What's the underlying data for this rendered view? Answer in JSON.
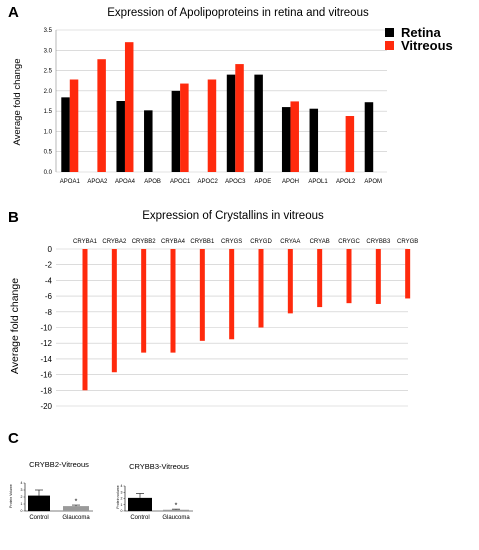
{
  "panels": {
    "a": "A",
    "b": "B",
    "c": "C"
  },
  "colors": {
    "retina": "#000000",
    "vitreous": "#ff2a0d",
    "control": "#000000",
    "glaucoma": "#9a9a9a",
    "grid": "#c8c8c8"
  },
  "chart_data": [
    {
      "type": "bar",
      "title": "Expression of Apolipoproteins in retina and vitreous",
      "xlabel": "",
      "ylabel": "Average fold change",
      "ylim": [
        0,
        3.5
      ],
      "yticks": [
        "0.0",
        "0.5",
        "1.0",
        "1.5",
        "2.0",
        "2.5",
        "3.0",
        "3.5"
      ],
      "grid": true,
      "legend_position": "right",
      "categories": [
        "APOA1",
        "APOA2",
        "APOA4",
        "APOB",
        "APOC1",
        "APOC2",
        "APOC3",
        "APOE",
        "APOH",
        "APOL1",
        "APOL2",
        "APOM"
      ],
      "series": [
        {
          "name": "Retina",
          "values": [
            1.84,
            null,
            1.75,
            1.52,
            2.0,
            null,
            2.4,
            2.4,
            1.6,
            1.56,
            null,
            1.72
          ]
        },
        {
          "name": "Vitreous",
          "values": [
            2.28,
            2.78,
            3.2,
            null,
            2.18,
            2.28,
            2.66,
            null,
            1.74,
            null,
            1.38,
            null
          ]
        }
      ]
    },
    {
      "type": "bar",
      "title": "Expression of Crystallins in vitreous",
      "xlabel": "",
      "ylabel": "Average fold change",
      "ylim": [
        -20,
        0
      ],
      "yticks": [
        "0",
        "-2",
        "-4",
        "-6",
        "-8",
        "-10",
        "-12",
        "-14",
        "-16",
        "-18",
        "-20"
      ],
      "grid": true,
      "categories": [
        "CRYBA1",
        "CRYBA2",
        "CRYBB2",
        "CRYBA4",
        "CRYBB1",
        "CRYGS",
        "CRYGD",
        "CRYAA",
        "CRYAB",
        "CRYGC",
        "CRYBB3",
        "CRYGB"
      ],
      "values": [
        -18.0,
        -15.7,
        -13.2,
        -13.2,
        -11.7,
        -11.5,
        -10.0,
        -8.2,
        -7.4,
        -6.9,
        -7.0,
        -6.3
      ]
    },
    {
      "type": "bar",
      "title": "CRYBB2-Vitreous",
      "ylabel": "Protein Volume",
      "ylim": [
        0,
        4
      ],
      "yticks": [
        "0",
        "1",
        "2",
        "3",
        "4"
      ],
      "categories": [
        "Control",
        "Glaucoma"
      ],
      "values": [
        2.2,
        0.7
      ],
      "errors": [
        0.8,
        0.15
      ],
      "annotations": [
        "",
        "*"
      ]
    },
    {
      "type": "bar",
      "title": "CRYBB3-Vitreous",
      "ylabel": "Protein volume",
      "ylim": [
        0,
        4
      ],
      "yticks": [
        "0",
        "1",
        "2",
        "3",
        "4"
      ],
      "categories": [
        "Control",
        "Glaucoma"
      ],
      "values": [
        2.1,
        0.2
      ],
      "errors": [
        0.7,
        0.1
      ],
      "annotations": [
        "",
        "*"
      ]
    }
  ]
}
